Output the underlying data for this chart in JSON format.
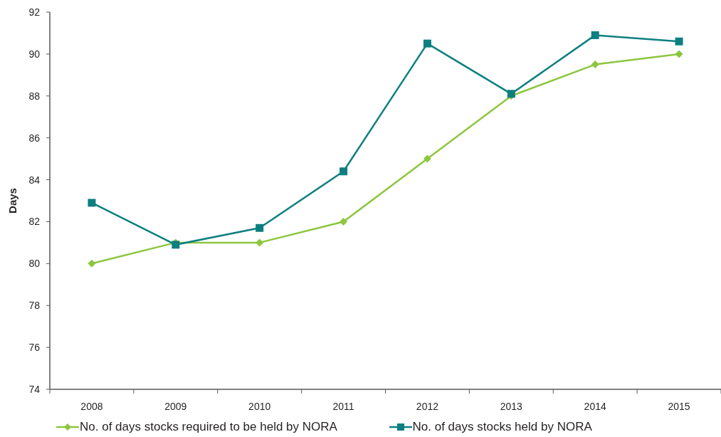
{
  "chart_data": {
    "type": "line",
    "ylabel": "Days",
    "categories": [
      "2008",
      "2009",
      "2010",
      "2011",
      "2012",
      "2013",
      "2014",
      "2015"
    ],
    "series": [
      {
        "name": "No. of days stocks required to be held by NORA",
        "color": "#8dc63f",
        "marker": "diamond",
        "values": [
          80,
          81,
          81,
          82,
          85,
          88,
          89.5,
          90
        ]
      },
      {
        "name": "No. of days stocks held by NORA",
        "color": "#0e7f80",
        "marker": "square",
        "values": [
          82.9,
          80.9,
          81.7,
          84.4,
          90.5,
          88.1,
          90.9,
          90.6
        ]
      }
    ],
    "ylim": [
      74,
      92
    ],
    "yticks": [
      74,
      76,
      78,
      80,
      82,
      84,
      86,
      88,
      90,
      92
    ],
    "grid": false,
    "legend": "bottom",
    "line_style": "solid"
  }
}
